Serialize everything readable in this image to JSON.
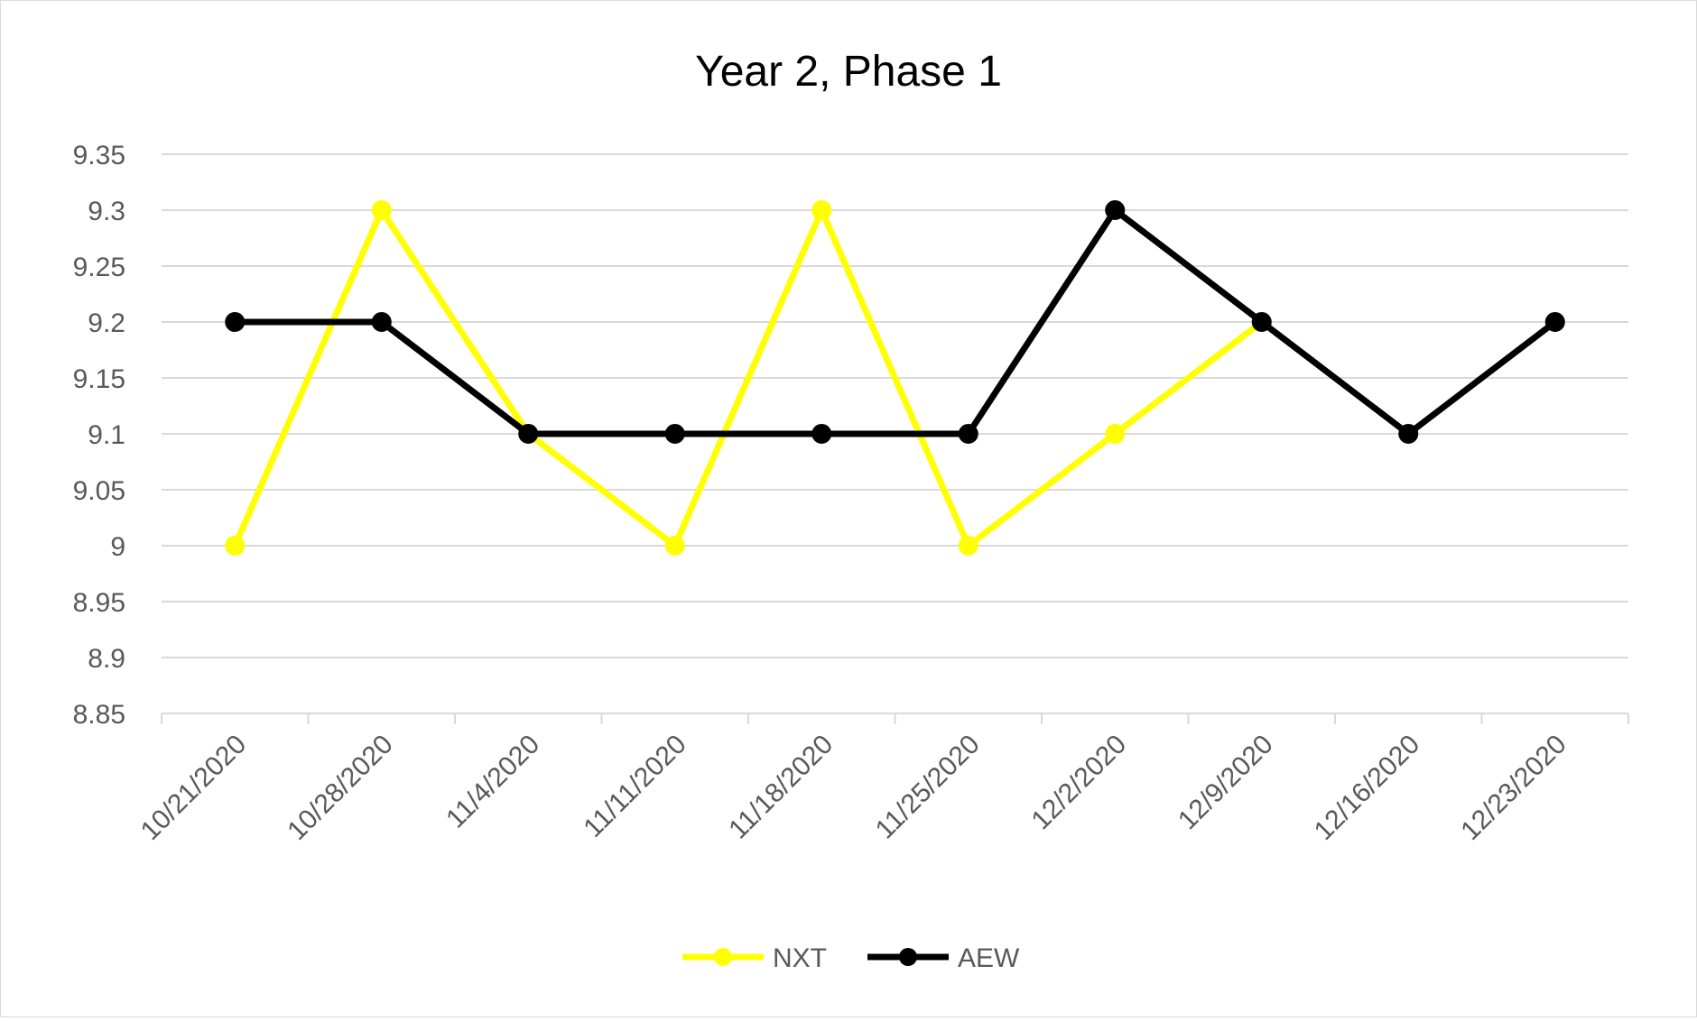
{
  "chart_data": {
    "type": "line",
    "title": "Year 2, Phase 1",
    "xlabel": "",
    "ylabel": "",
    "categories": [
      "10/21/2020",
      "10/28/2020",
      "11/4/2020",
      "11/11/2020",
      "11/18/2020",
      "11/25/2020",
      "12/2/2020",
      "12/9/2020",
      "12/16/2020",
      "12/23/2020"
    ],
    "series": [
      {
        "name": "NXT",
        "color": "#ffff00",
        "values": [
          9.0,
          9.3,
          9.1,
          9.0,
          9.3,
          9.0,
          9.1,
          9.2,
          null,
          null
        ]
      },
      {
        "name": "AEW",
        "color": "#000000",
        "values": [
          9.2,
          9.2,
          9.1,
          9.1,
          9.1,
          9.1,
          9.3,
          9.2,
          9.1,
          9.2
        ]
      }
    ],
    "ylim": [
      8.85,
      9.35
    ],
    "yticks": [
      "8.85",
      "8.9",
      "8.95",
      "9",
      "9.05",
      "9.1",
      "9.15",
      "9.2",
      "9.25",
      "9.3",
      "9.35"
    ],
    "grid": true,
    "legend": "bottom"
  }
}
